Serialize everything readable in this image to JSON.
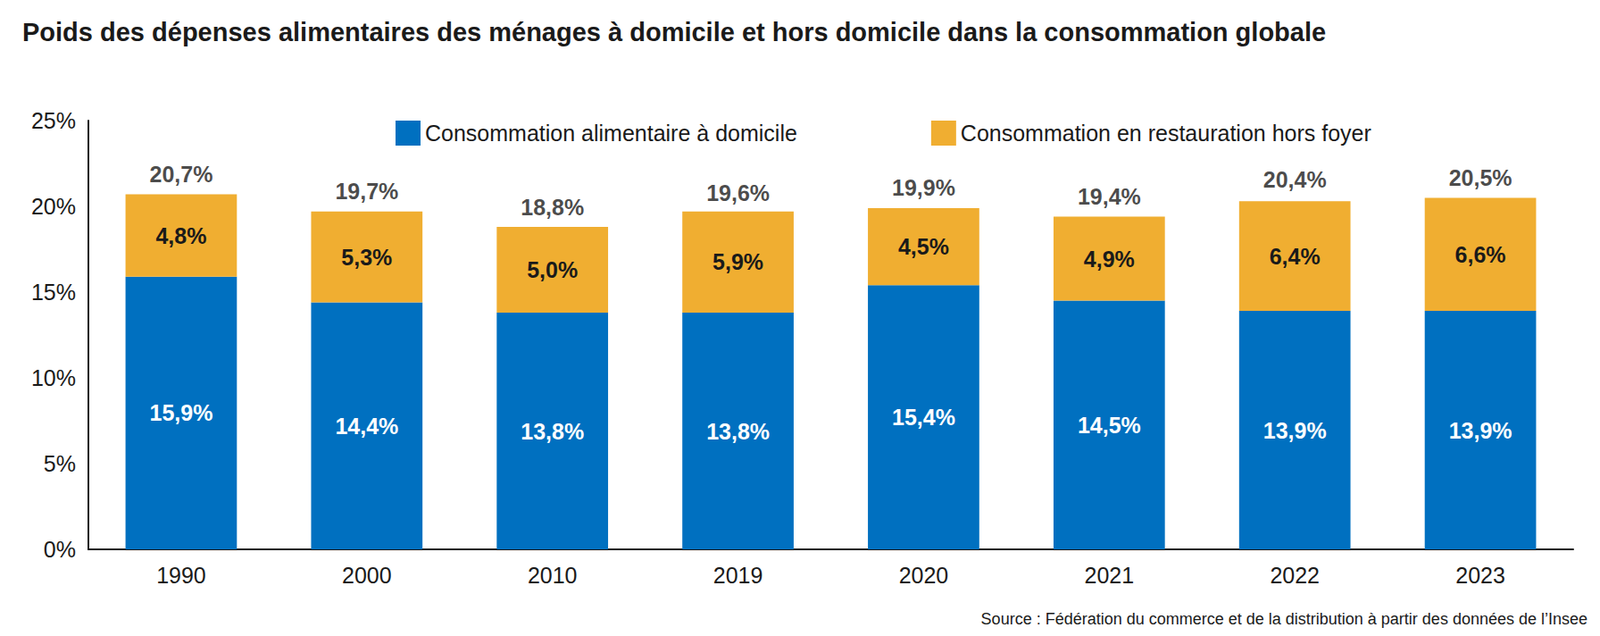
{
  "chart_data": {
    "type": "bar",
    "title": "Poids des dépenses alimentaires des ménages à domicile et hors domicile dans la consommation globale",
    "source": "Source : Fédération du commerce et de la distribution à partir des données de l’Insee",
    "categories": [
      "1990",
      "2000",
      "2010",
      "2019",
      "2020",
      "2021",
      "2022",
      "2023"
    ],
    "series": [
      {
        "name": "Consommation alimentaire à domicile",
        "color": "#0070c0",
        "values": [
          15.9,
          14.4,
          13.8,
          13.8,
          15.4,
          14.5,
          13.9,
          13.9
        ],
        "value_labels": [
          "15,9%",
          "14,4%",
          "13,8%",
          "13,8%",
          "15,4%",
          "14,5%",
          "13,9%",
          "13,9%"
        ]
      },
      {
        "name": "Consommation en restauration hors foyer",
        "color": "#f0ae31",
        "values": [
          4.8,
          5.3,
          5.0,
          5.9,
          4.5,
          4.9,
          6.4,
          6.6
        ],
        "value_labels": [
          "4,8%",
          "5,3%",
          "5,0%",
          "5,9%",
          "4,5%",
          "4,9%",
          "6,4%",
          "6,6%"
        ]
      }
    ],
    "totals": [
      20.7,
      19.7,
      18.8,
      19.6,
      19.9,
      19.4,
      20.4,
      20.5
    ],
    "total_labels": [
      "20,7%",
      "19,7%",
      "18,8%",
      "19,6%",
      "19,9%",
      "19,4%",
      "20,4%",
      "20,5%"
    ],
    "ylim": [
      0,
      25
    ],
    "yticks": [
      {
        "value": 0,
        "label": "0%"
      },
      {
        "value": 5,
        "label": "5%"
      },
      {
        "value": 10,
        "label": "10%"
      },
      {
        "value": 15,
        "label": "15%"
      },
      {
        "value": 20,
        "label": "20%"
      },
      {
        "value": 25,
        "label": "25%"
      }
    ],
    "stacked": true,
    "data_labels": true,
    "grid": false,
    "legend": "top"
  }
}
